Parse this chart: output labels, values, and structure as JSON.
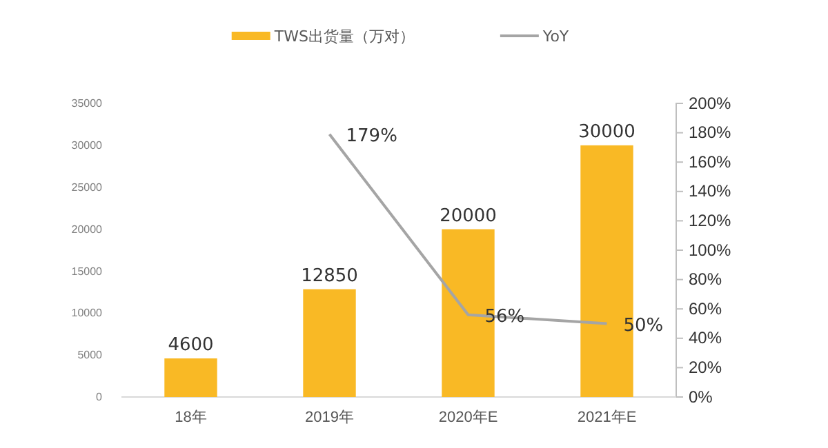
{
  "chart_data": {
    "type": "bar",
    "categories": [
      "18年",
      "2019年",
      "2020年E",
      "2021年E"
    ],
    "series": [
      {
        "name": "TWS出货量（万对）",
        "color": "#f9b925",
        "values": [
          4600,
          12850,
          20000,
          30000
        ],
        "value_labels": [
          "4600",
          "12850",
          "20000",
          "30000"
        ]
      },
      {
        "name": "YoY",
        "type": "line",
        "axis": "y2",
        "color": "#a5a5a5",
        "values": [
          null,
          179,
          56,
          50
        ],
        "value_labels": [
          null,
          "179%",
          "56%",
          "50%"
        ]
      }
    ],
    "ylim": [
      0,
      35000
    ],
    "yticks": [
      0,
      5000,
      10000,
      15000,
      20000,
      25000,
      30000,
      35000
    ],
    "y2lim": [
      0,
      200
    ],
    "y2ticks": [
      {
        "value": 0,
        "label": "0%"
      },
      {
        "value": 20,
        "label": "20%"
      },
      {
        "value": 40,
        "label": "40%"
      },
      {
        "value": 60,
        "label": "60%"
      },
      {
        "value": 80,
        "label": "80%"
      },
      {
        "value": 100,
        "label": "100%"
      },
      {
        "value": 120,
        "label": "120%"
      },
      {
        "value": 140,
        "label": "140%"
      },
      {
        "value": 160,
        "label": "160%"
      },
      {
        "value": 180,
        "label": "180%"
      },
      {
        "value": 200,
        "label": "200%"
      }
    ],
    "legend": "top",
    "grid": false
  }
}
